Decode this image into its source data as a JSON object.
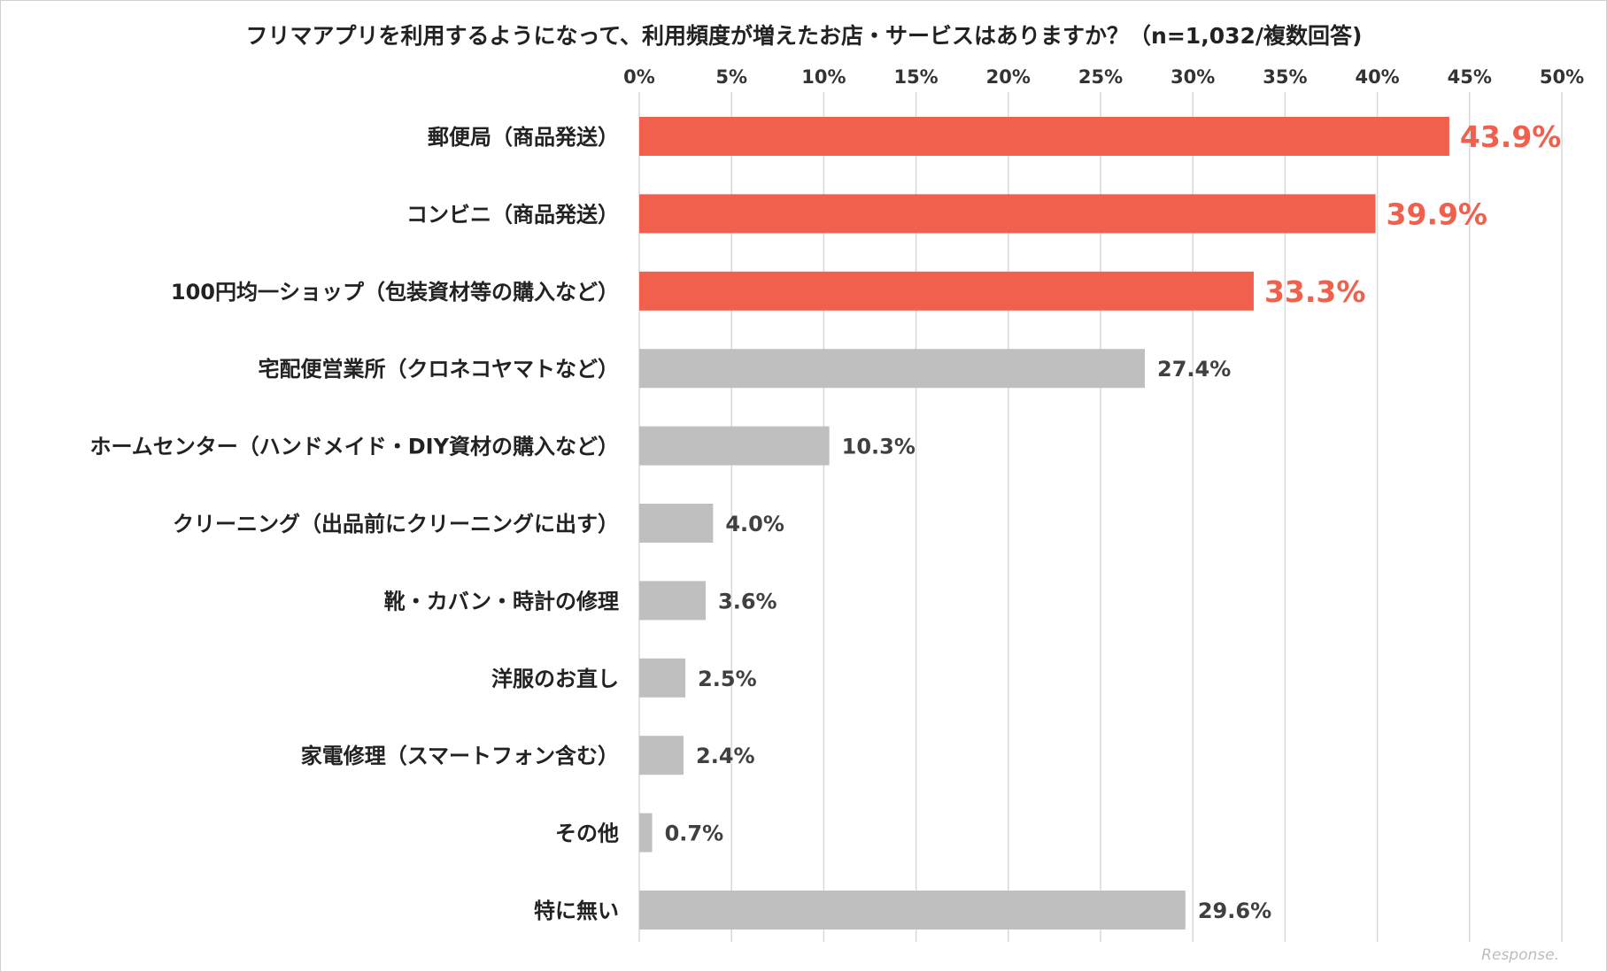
{
  "chart_data": {
    "type": "bar",
    "orientation": "horizontal",
    "title": "フリマアプリを利用するようになって、利用頻度が増えたお店・サービスはありますか？（n=1,032/複数回答)",
    "xlim": [
      0,
      50
    ],
    "x_ticks": [
      0,
      5,
      10,
      15,
      20,
      25,
      30,
      35,
      40,
      45,
      50
    ],
    "tick_suffix": "%",
    "grid": true,
    "categories": [
      "郵便局（商品発送）",
      "コンビニ（商品発送）",
      "100円均一ショップ（包装資材等の購入など）",
      "宅配便営業所（クロネコヤマトなど）",
      "ホームセンター（ハンドメイド・DIY資材の購入など）",
      "クリーニング（出品前にクリーニングに出す）",
      "靴・カバン・時計の修理",
      "洋服のお直し",
      "家電修理（スマートフォン含む）",
      "その他",
      "特に無い"
    ],
    "values": [
      43.9,
      39.9,
      33.3,
      27.4,
      10.3,
      4.0,
      3.6,
      2.5,
      2.4,
      0.7,
      29.6
    ],
    "value_labels": [
      "43.9%",
      "39.9%",
      "33.3%",
      "27.4%",
      "10.3%",
      "4.0%",
      "3.6%",
      "2.5%",
      "2.4%",
      "0.7%",
      "29.6%"
    ],
    "highlighted": [
      true,
      true,
      true,
      false,
      false,
      false,
      false,
      false,
      false,
      false,
      false
    ],
    "colors": {
      "highlight": "#f0604c",
      "default": "#bfbfbf",
      "value_label": "#404040",
      "grid": "#d9d9d9"
    }
  },
  "watermark": "Response."
}
